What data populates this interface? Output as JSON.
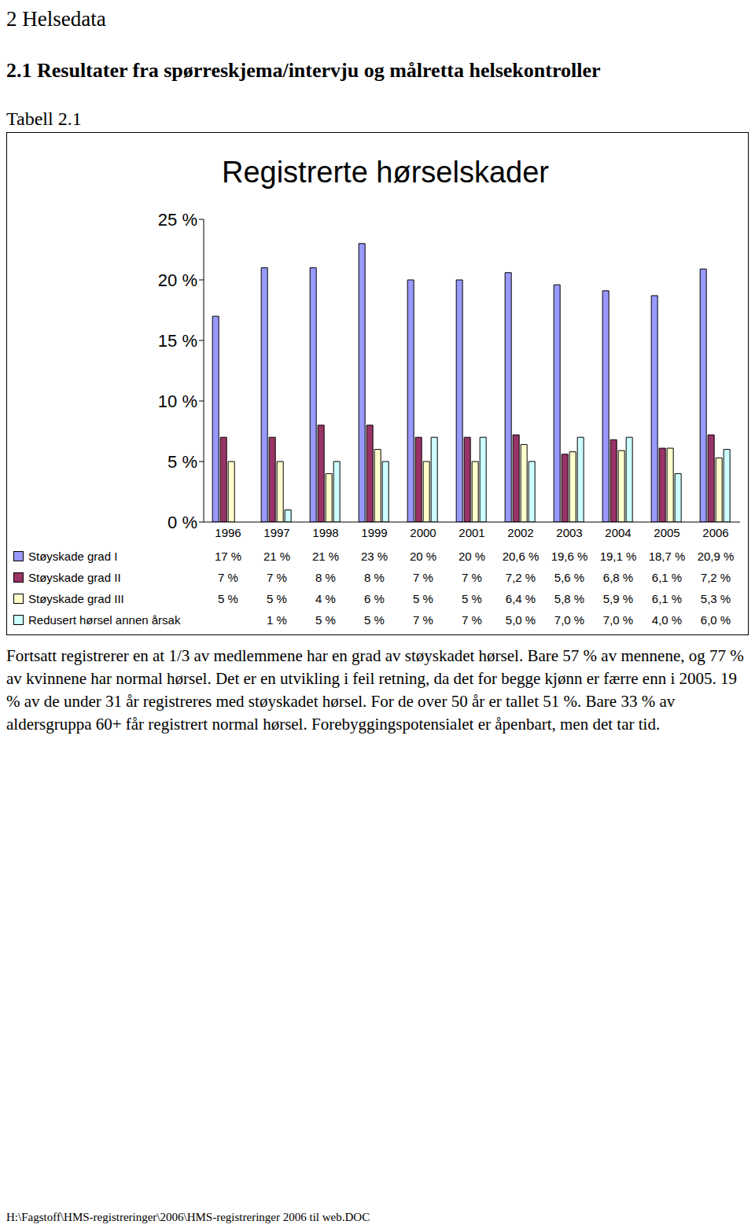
{
  "document": {
    "heading1": "2 Helsedata",
    "heading2": "2.1 Resultater fra spørreskjema/intervju og målretta helsekontroller",
    "table_caption": "Tabell 2.1",
    "paragraph": "Fortsatt registrerer en at 1/3 av medlemmene har en grad av støyskadet hørsel. Bare 57 % av mennene, og 77 % av kvinnene har normal hørsel. Det er en utvikling i feil retning, da det for begge kjønn er færre enn i 2005. 19 % av de under 31 år registreres med støyskadet hørsel. For de over 50 år er tallet 51 %. Bare 33 % av aldersgruppa 60+ får registrert normal hørsel. Forebyggingspotensialet er åpenbart, men det tar tid.",
    "footer": "H:\\Fagstoff\\HMS-registreringer\\2006\\HMS-registreringer 2006 til web.DOC"
  },
  "chart_data": {
    "type": "bar",
    "title": "Registrerte hørselskader",
    "categories": [
      "1996",
      "1997",
      "1998",
      "1999",
      "2000",
      "2001",
      "2002",
      "2003",
      "2004",
      "2005",
      "2006"
    ],
    "series": [
      {
        "name": "Støyskade grad I",
        "color": "#9999ff",
        "values": [
          17,
          21,
          21,
          23,
          20,
          20,
          20.6,
          19.6,
          19.1,
          18.7,
          20.9
        ],
        "value_labels": [
          "17 %",
          "21 %",
          "21 %",
          "23 %",
          "20 %",
          "20 %",
          "20,6 %",
          "19,6 %",
          "19,1 %",
          "18,7 %",
          "20,9 %"
        ]
      },
      {
        "name": "Støyskade grad II",
        "color": "#993366",
        "values": [
          7,
          7,
          8,
          8,
          7,
          7,
          7.2,
          5.6,
          6.8,
          6.1,
          7.2
        ],
        "value_labels": [
          "7 %",
          "7 %",
          "8 %",
          "8 %",
          "7 %",
          "7 %",
          "7,2 %",
          "5,6 %",
          "6,8 %",
          "6,1 %",
          "7,2 %"
        ]
      },
      {
        "name": "Støyskade grad III",
        "color": "#ffffcc",
        "values": [
          5,
          5,
          4,
          6,
          5,
          5,
          6.4,
          5.8,
          5.9,
          6.1,
          5.3
        ],
        "value_labels": [
          "5 %",
          "5 %",
          "4 %",
          "6 %",
          "5 %",
          "5 %",
          "6,4 %",
          "5,8 %",
          "5,9 %",
          "6,1 %",
          "5,3 %"
        ]
      },
      {
        "name": "Redusert hørsel annen årsak",
        "color": "#ccffff",
        "values": [
          null,
          1,
          5,
          5,
          7,
          7,
          5.0,
          7.0,
          7.0,
          4.0,
          6.0
        ],
        "value_labels": [
          null,
          "1 %",
          "5 %",
          "5 %",
          "7 %",
          "7 %",
          "5,0 %",
          "7,0 %",
          "7,0 %",
          "4,0 %",
          "6,0 %"
        ]
      }
    ],
    "ylim": [
      0,
      25
    ],
    "yticks": [
      {
        "value": 0,
        "label": "0 %"
      },
      {
        "value": 5,
        "label": "5 %"
      },
      {
        "value": 10,
        "label": "10 %"
      },
      {
        "value": 15,
        "label": "15 %"
      },
      {
        "value": 20,
        "label": "20 %"
      },
      {
        "value": 25,
        "label": "25 %"
      }
    ],
    "grid": false
  }
}
